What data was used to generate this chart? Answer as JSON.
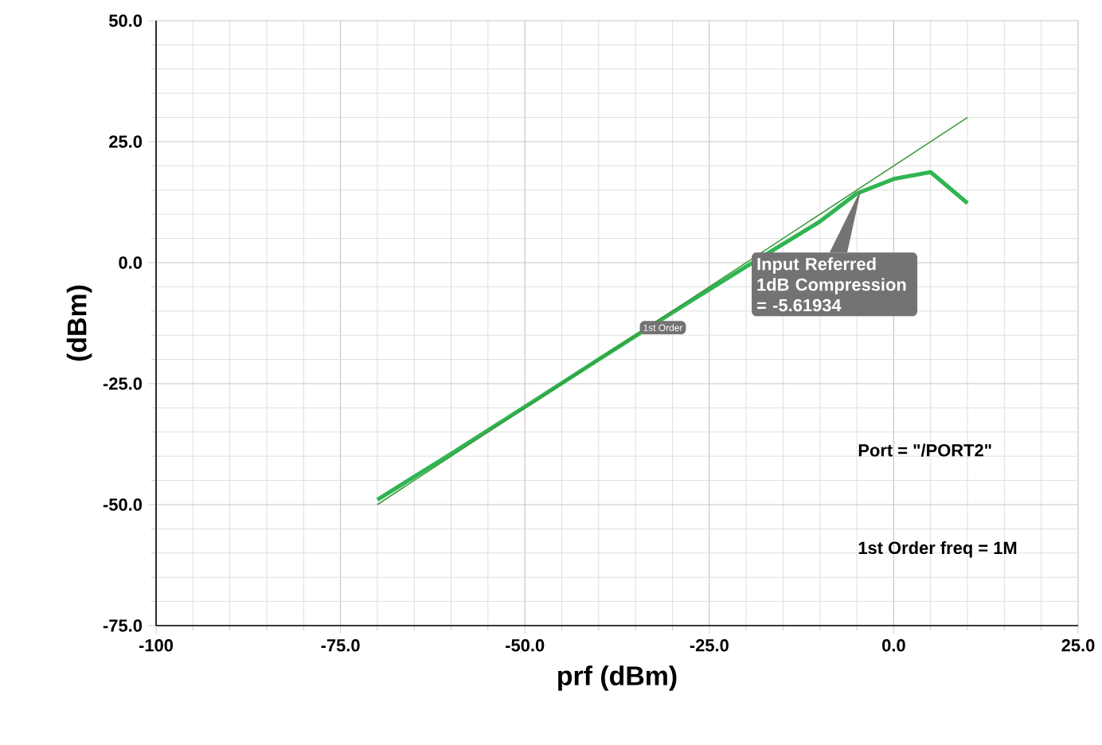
{
  "chart_data": {
    "type": "line",
    "xlabel": "prf (dBm)",
    "ylabel": "(dBm)",
    "xlim": [
      -100,
      25
    ],
    "ylim": [
      -75,
      50
    ],
    "xticks": [
      {
        "value": -100,
        "label": "-100"
      },
      {
        "value": -75,
        "label": "-75.0"
      },
      {
        "value": -50,
        "label": "-50.0"
      },
      {
        "value": -25,
        "label": "-25.0"
      },
      {
        "value": 0,
        "label": "0.0"
      },
      {
        "value": 25,
        "label": "25.0"
      }
    ],
    "yticks": [
      {
        "value": -75,
        "label": "-75.0"
      },
      {
        "value": -50,
        "label": "-50.0"
      },
      {
        "value": -25,
        "label": "-25.0"
      },
      {
        "value": 0,
        "label": "0.0"
      },
      {
        "value": 25,
        "label": "25.0"
      },
      {
        "value": 50,
        "label": "50.0"
      }
    ],
    "grid": true,
    "series": [
      {
        "color": "#2fb552",
        "x": [
          -70,
          -60,
          -50,
          -40,
          -30,
          -20,
          -10,
          -5,
          0,
          5,
          10
        ],
        "values": [
          -49,
          -39.5,
          -29.8,
          -20,
          -10.3,
          -0.8,
          8.5,
          14.3,
          17.3,
          18.7,
          12.3
        ]
      },
      {
        "color": "#3c9a3c",
        "line_style": "solid",
        "x": [
          -70,
          10
        ],
        "values": [
          -50,
          30
        ]
      }
    ],
    "annotations": [
      {
        "text": "Input Referred 1dB Compression = -5.61934",
        "x": -4.4,
        "y": 15.3
      },
      {
        "text": "1st Order",
        "x": -30,
        "y": -10
      },
      "Port = \"/PORT2\"",
      "1st Order freq = 1M"
    ]
  }
}
